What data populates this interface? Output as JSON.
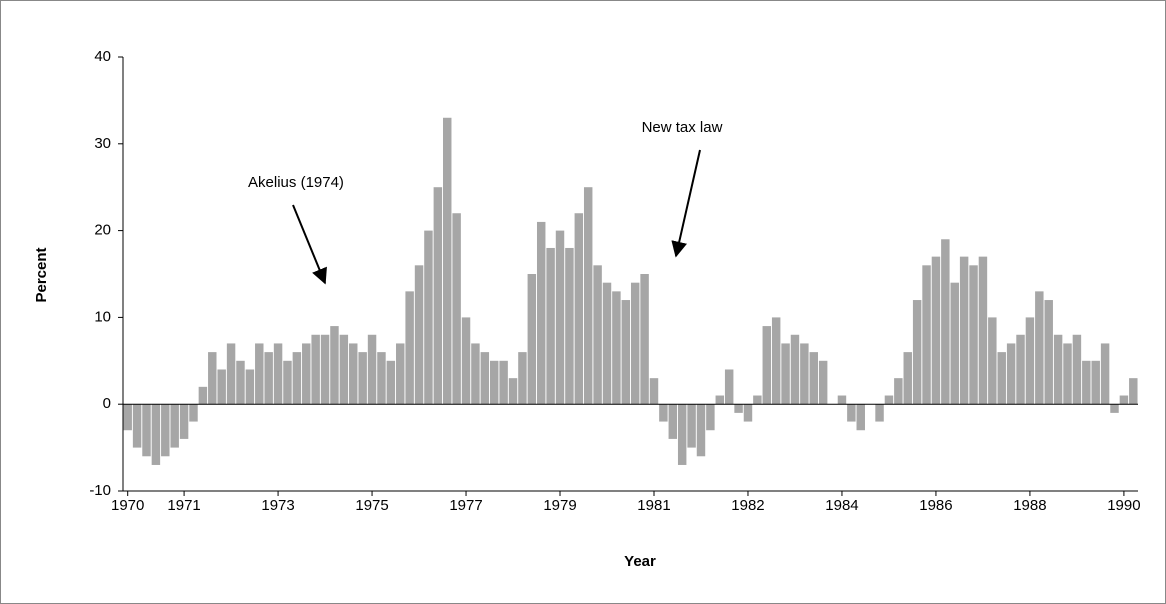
{
  "chart_data": {
    "type": "bar",
    "x_label": "Year",
    "y_label": "Percent",
    "annotations": [
      "Akelius (1974)",
      "New tax law"
    ],
    "color": "#a6a6a6",
    "ylim": [
      -10,
      40
    ],
    "yticks": [
      -10,
      0,
      10,
      20,
      30,
      40
    ],
    "categories": [
      "1970",
      null,
      null,
      null,
      null,
      null,
      "1971",
      null,
      null,
      null,
      null,
      null,
      null,
      null,
      null,
      null,
      "1973",
      null,
      null,
      null,
      null,
      null,
      null,
      null,
      null,
      null,
      "1975",
      null,
      null,
      null,
      null,
      null,
      null,
      null,
      null,
      null,
      "1977",
      null,
      null,
      null,
      null,
      null,
      null,
      null,
      null,
      null,
      "1979",
      null,
      null,
      null,
      null,
      null,
      null,
      null,
      null,
      null,
      "1981",
      null,
      null,
      null,
      null,
      null,
      null,
      null,
      null,
      null,
      "1982",
      null,
      null,
      null,
      null,
      null,
      null,
      null,
      null,
      null,
      "1984",
      null,
      null,
      null,
      null,
      null,
      null,
      null,
      null,
      null,
      "1986",
      null,
      null,
      null,
      null,
      null,
      null,
      null,
      null,
      null,
      "1988",
      null,
      null,
      null,
      null,
      null,
      null,
      null,
      null,
      null,
      "1990",
      null
    ],
    "values": [
      -3,
      -5,
      -6,
      -7,
      -6,
      -5,
      -4,
      -2,
      2,
      6,
      4,
      7,
      5,
      4,
      7,
      6,
      7,
      5,
      6,
      7,
      8,
      8,
      9,
      8,
      7,
      6,
      8,
      6,
      5,
      7,
      13,
      16,
      20,
      25,
      33,
      22,
      10,
      7,
      6,
      5,
      5,
      3,
      6,
      15,
      21,
      18,
      20,
      18,
      22,
      25,
      16,
      14,
      13,
      12,
      14,
      15,
      3,
      -2,
      -4,
      -7,
      -5,
      -6,
      -3,
      1,
      4,
      -1,
      -2,
      1,
      9,
      10,
      7,
      8,
      7,
      6,
      5,
      0,
      1,
      -2,
      -3,
      0,
      -2,
      1,
      3,
      6,
      12,
      16,
      17,
      19,
      14,
      17,
      16,
      17,
      10,
      6,
      7,
      8,
      10,
      13,
      12,
      8,
      7,
      8,
      5,
      5,
      7,
      -1,
      1,
      3
    ]
  }
}
